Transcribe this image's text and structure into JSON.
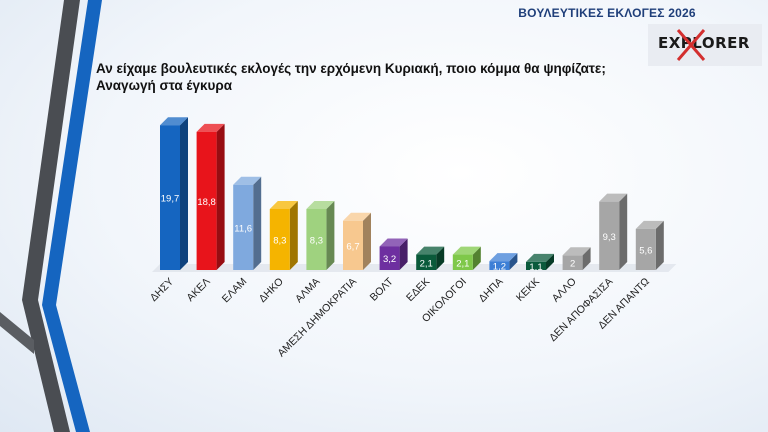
{
  "header": {
    "title": "ΒΟΥΛΕΥΤΙΚΕΣ ΕΚΛΟΓΕΣ 2026",
    "logo_text": "EXPLORER"
  },
  "question": {
    "line1": "Αν είχαμε βουλευτικές εκλογές την ερχόμενη Κυριακή, ποιο κόμμα θα ψηφίζατε;",
    "line2": "Αναγωγή στα έγκυρα"
  },
  "colors": {
    "deco_dark": "#4a4d52",
    "deco_blue": "#1565c0"
  },
  "chart_data": {
    "type": "bar",
    "title": "",
    "xlabel": "",
    "ylabel": "",
    "ylim": [
      0,
      20
    ],
    "grid": false,
    "legend": "none",
    "categories": [
      "ΔΗΣΥ",
      "ΑΚΕΛ",
      "ΕΛΑΜ",
      "ΔΗΚΟ",
      "ΑΛΜΑ",
      "ΑΜΕΣΗ ΔΗΜΟΚΡΑΤΙΑ",
      "ΒΟΛΤ",
      "ΕΔΕΚ",
      "ΟΙΚΟΛΟΓΟΙ",
      "ΔΗΠΑ",
      "ΚΕΚΚ",
      "ΑΛΛΟ",
      "ΔΕΝ ΑΠΟΦΑΣΙΣΑ",
      "ΔΕΝ ΑΠΑΝΤΩ"
    ],
    "values": [
      19.7,
      18.8,
      11.6,
      8.3,
      8.3,
      6.7,
      3.2,
      2.1,
      2.1,
      1.2,
      1.1,
      2,
      9.3,
      5.6
    ],
    "value_labels": [
      "19,7",
      "18,8",
      "11,6",
      "8,3",
      "8,3",
      "6,7",
      "3,2",
      "2,1",
      "2,1",
      "1,2",
      "1,1",
      "2",
      "9,3",
      "5,6"
    ],
    "colors": [
      "#1565c0",
      "#e8141b",
      "#7fa9de",
      "#f5b400",
      "#9fd27f",
      "#f7c88f",
      "#6e2fa0",
      "#0a5a3a",
      "#7fc84a",
      "#3d7fd6",
      "#0b5a3c",
      "#a6a6a6",
      "#a6a6a6",
      "#a6a6a6"
    ],
    "label_colors": [
      "#ffffff",
      "#ffffff",
      "#ffffff",
      "#ffffff",
      "#ffffff",
      "#ffffff",
      "#ffffff",
      "#ffffff",
      "#ffffff",
      "#ffffff",
      "#ffffff",
      "#ffffff",
      "#ffffff",
      "#ffffff"
    ]
  }
}
